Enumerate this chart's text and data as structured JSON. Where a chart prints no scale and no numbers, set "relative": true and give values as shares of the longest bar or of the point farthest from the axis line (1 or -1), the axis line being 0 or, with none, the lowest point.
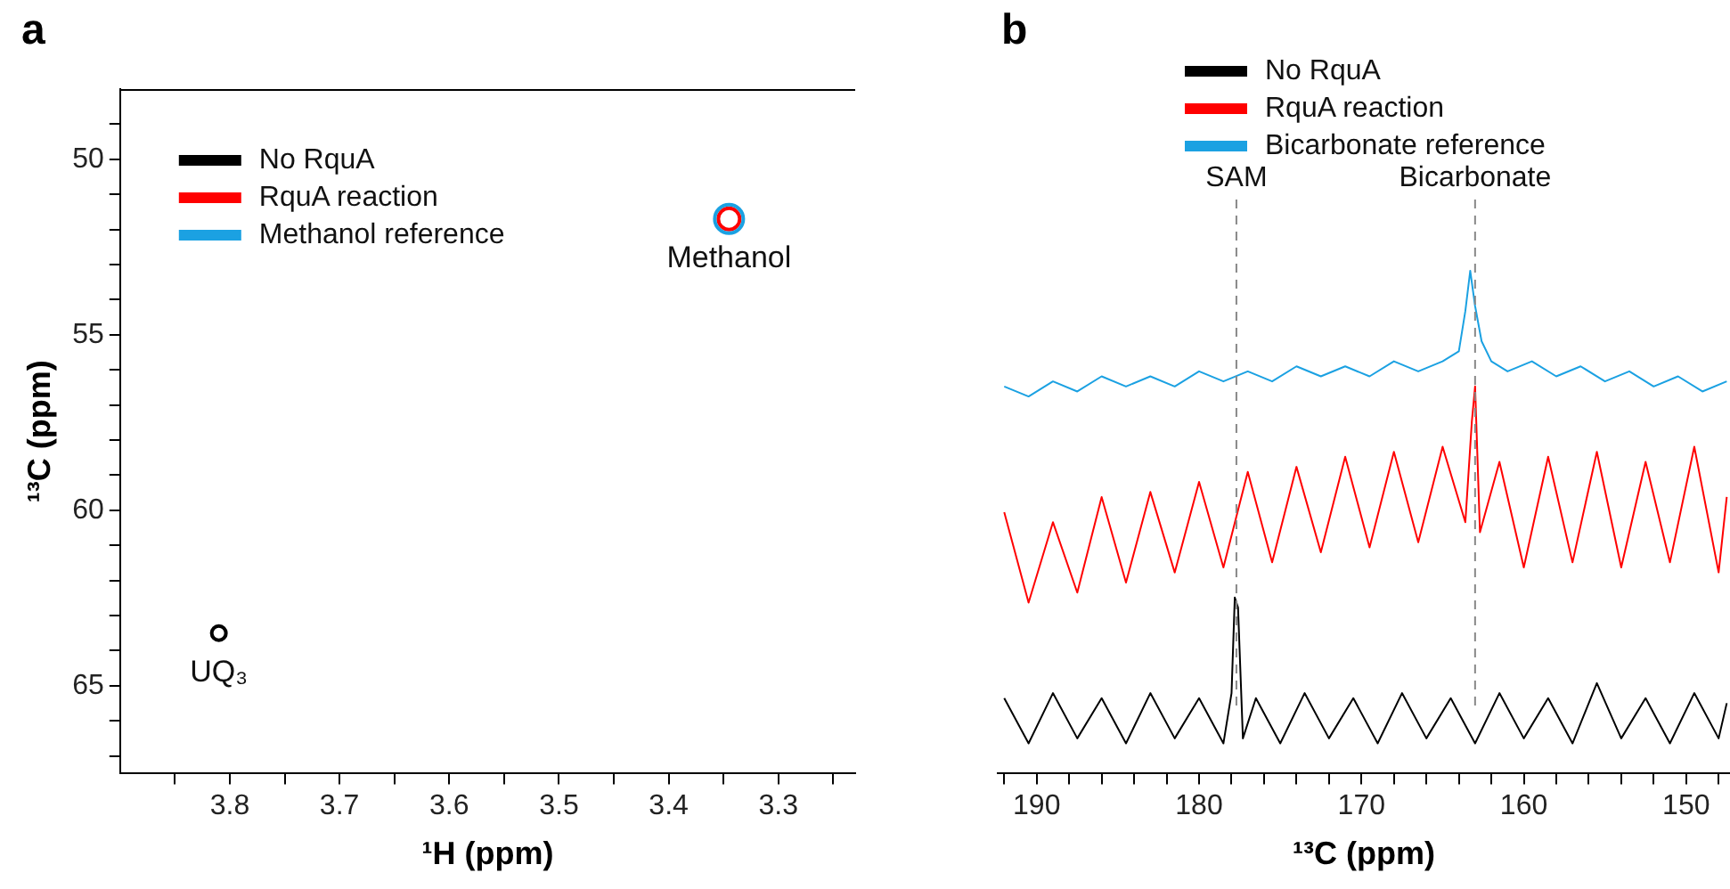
{
  "chart_data": [
    {
      "type": "scatter",
      "title": "a",
      "xlabel": "¹H (ppm)",
      "ylabel": "¹³C (ppm)",
      "xlim": [
        3.9,
        3.23
      ],
      "ylim": [
        67.5,
        48
      ],
      "xticks": [
        {
          "value": 3.85,
          "label": null
        },
        3.8,
        {
          "value": 3.75,
          "label": null
        },
        3.7,
        {
          "value": 3.65,
          "label": null
        },
        3.6,
        {
          "value": 3.55,
          "label": null
        },
        3.5,
        {
          "value": 3.45,
          "label": null
        },
        3.4,
        {
          "value": 3.35,
          "label": null
        },
        3.3,
        {
          "value": 3.25,
          "label": null
        }
      ],
      "yticks": [
        {
          "value": 49,
          "label": null
        },
        50,
        {
          "value": 51,
          "label": null
        },
        {
          "value": 52,
          "label": null
        },
        {
          "value": 53,
          "label": null
        },
        {
          "value": 54,
          "label": null
        },
        55,
        {
          "value": 56,
          "label": null
        },
        {
          "value": 57,
          "label": null
        },
        {
          "value": 58,
          "label": null
        },
        {
          "value": 59,
          "label": null
        },
        60,
        {
          "value": 61,
          "label": null
        },
        {
          "value": 62,
          "label": null
        },
        {
          "value": 63,
          "label": null
        },
        {
          "value": 64,
          "label": null
        },
        65,
        {
          "value": 66,
          "label": null
        },
        {
          "value": 67,
          "label": null
        }
      ],
      "grid": false,
      "legend": "top left",
      "marker": "circle",
      "series": [
        {
          "name": "No RquA",
          "color": "#000000",
          "x": [
            3.81
          ],
          "values": [
            63.5
          ]
        },
        {
          "name": "RquA reaction",
          "color": "#ff0000",
          "x": [
            3.345
          ],
          "values": [
            51.7
          ]
        },
        {
          "name": "Methanol reference",
          "color": "#1ba1e2",
          "x": [
            3.345
          ],
          "values": [
            51.7
          ]
        }
      ],
      "annotations": [
        {
          "text": "Methanol",
          "x": 3.345,
          "y": 51.7
        },
        {
          "text": "UQ₃",
          "x": 3.81,
          "y": 63.5
        }
      ]
    },
    {
      "type": "line",
      "title": "b",
      "xlabel": "¹³C (ppm)",
      "relative": true,
      "xlim": [
        192.4,
        147.3
      ],
      "xticks": [
        {
          "value": 192,
          "label": null
        },
        190,
        {
          "value": 188,
          "label": null
        },
        {
          "value": 186,
          "label": null
        },
        {
          "value": 184,
          "label": null
        },
        {
          "value": 182,
          "label": null
        },
        180,
        {
          "value": 178,
          "label": null
        },
        {
          "value": 176,
          "label": null
        },
        {
          "value": 174,
          "label": null
        },
        {
          "value": 172,
          "label": null
        },
        170,
        {
          "value": 168,
          "label": null
        },
        {
          "value": 166,
          "label": null
        },
        {
          "value": 164,
          "label": null
        },
        {
          "value": 162,
          "label": null
        },
        160,
        {
          "value": 158,
          "label": null
        },
        {
          "value": 156,
          "label": null
        },
        {
          "value": 154,
          "label": null
        },
        {
          "value": 152,
          "label": null
        },
        150,
        {
          "value": 148,
          "label": null
        }
      ],
      "grid": false,
      "legend": "top",
      "line_style": "solid",
      "series": [
        {
          "name": "No RquA",
          "color": "#000000",
          "x": [
            192,
            190.5,
            189,
            187.5,
            186,
            184.5,
            183,
            181.5,
            180,
            178.5,
            178,
            177.8,
            177.6,
            177.3,
            176.5,
            175,
            173.5,
            172,
            170.5,
            169,
            167.5,
            166,
            164.5,
            163,
            161.5,
            160,
            158.5,
            157,
            155.5,
            154,
            152.5,
            151,
            149.5,
            148,
            147.5
          ],
          "values": [
            0.15,
            0.06,
            0.16,
            0.07,
            0.15,
            0.06,
            0.16,
            0.07,
            0.15,
            0.06,
            0.16,
            0.35,
            0.33,
            0.07,
            0.15,
            0.06,
            0.16,
            0.07,
            0.15,
            0.06,
            0.16,
            0.07,
            0.15,
            0.06,
            0.16,
            0.07,
            0.15,
            0.06,
            0.18,
            0.07,
            0.15,
            0.06,
            0.16,
            0.07,
            0.14
          ]
        },
        {
          "name": "RquA reaction",
          "color": "#ff0000",
          "x": [
            192,
            190.5,
            189,
            187.5,
            186,
            184.5,
            183,
            181.5,
            180,
            178.5,
            177,
            175.5,
            174,
            172.5,
            171,
            169.5,
            168,
            166.5,
            165,
            163.6,
            163.2,
            163.0,
            162.7,
            161.5,
            160,
            158.5,
            157,
            155.5,
            154,
            152.5,
            151,
            149.5,
            148,
            147.5
          ],
          "values": [
            0.52,
            0.34,
            0.5,
            0.36,
            0.55,
            0.38,
            0.56,
            0.4,
            0.58,
            0.41,
            0.6,
            0.42,
            0.61,
            0.44,
            0.63,
            0.45,
            0.64,
            0.46,
            0.65,
            0.5,
            0.7,
            0.77,
            0.48,
            0.62,
            0.41,
            0.63,
            0.42,
            0.64,
            0.41,
            0.62,
            0.42,
            0.65,
            0.4,
            0.55
          ]
        },
        {
          "name": "Bicarbonate reference",
          "color": "#1ba1e2",
          "x": [
            192,
            190.5,
            189,
            187.5,
            186,
            184.5,
            183,
            181.5,
            180,
            178.5,
            177,
            175.5,
            174,
            172.5,
            171,
            169.5,
            168,
            166.5,
            165,
            164,
            163.6,
            163.3,
            163.0,
            162.6,
            162,
            161,
            159.5,
            158,
            156.5,
            155,
            153.5,
            152,
            150.5,
            149,
            147.5
          ],
          "values": [
            0.77,
            0.75,
            0.78,
            0.76,
            0.79,
            0.77,
            0.79,
            0.77,
            0.8,
            0.78,
            0.8,
            0.78,
            0.81,
            0.79,
            0.81,
            0.79,
            0.82,
            0.8,
            0.82,
            0.84,
            0.92,
            1.0,
            0.93,
            0.86,
            0.82,
            0.8,
            0.82,
            0.79,
            0.81,
            0.78,
            0.8,
            0.77,
            0.79,
            0.76,
            0.78
          ]
        }
      ],
      "ref_lines": [
        {
          "axis": "x",
          "value": 177.7,
          "label": "SAM",
          "color": "#888888",
          "line_style": "dashed"
        },
        {
          "axis": "x",
          "value": 163.0,
          "label": "Bicarbonate",
          "color": "#888888",
          "line_style": "dashed"
        }
      ]
    }
  ]
}
